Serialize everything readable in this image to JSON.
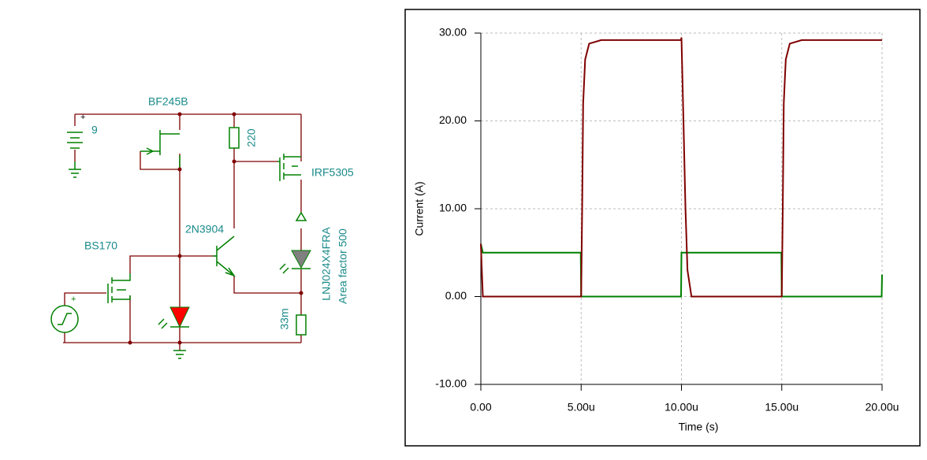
{
  "circuit": {
    "labels": [
      "BF245B",
      "9",
      "220",
      "IRF5305",
      "2N3904",
      "BS170",
      "LNJ024X4FRA",
      "Area factor 500",
      "33m",
      "+",
      "+"
    ]
  },
  "chart_data": {
    "type": "line",
    "x_label": "Time (s)",
    "y_label": "Current (A)",
    "xlim": [
      0,
      2e-05
    ],
    "xticks": [
      {
        "value": 0,
        "label": "0.00"
      },
      {
        "value": 5e-06,
        "label": "5.00u"
      },
      {
        "value": 1e-05,
        "label": "10.00u"
      },
      {
        "value": 1.5e-05,
        "label": "15.00u"
      },
      {
        "value": 2e-05,
        "label": "20.00u"
      }
    ],
    "ylim": [
      -10,
      30
    ],
    "yticks": [
      {
        "value": -10,
        "label": "-10.00"
      },
      {
        "value": 0,
        "label": "0.00"
      },
      {
        "value": 10,
        "label": "10.00"
      },
      {
        "value": 20,
        "label": "20.00"
      },
      {
        "value": 30,
        "label": "30.00"
      }
    ],
    "grid": true,
    "x": [
      0,
      1e-07,
      4.98e-06,
      5e-06,
      5.05e-06,
      5.1e-06,
      5.2e-06,
      5.4e-06,
      6e-06,
      9.98e-06,
      1e-05,
      1.01e-05,
      1.02e-05,
      1.03e-05,
      1.05e-05,
      1.498e-05,
      1.5e-05,
      1.505e-05,
      1.51e-05,
      1.52e-05,
      1.54e-05,
      1.6e-05,
      1.998e-05,
      2e-05
    ],
    "series": [
      {
        "color": "#008000",
        "values": [
          6,
          5,
          5,
          0,
          0,
          0,
          0,
          0,
          0,
          0,
          5,
          5,
          5,
          5,
          5,
          5,
          0,
          0,
          0,
          0,
          0,
          0,
          0,
          2.5
        ]
      },
      {
        "color": "#800000",
        "values": [
          6,
          0,
          0,
          0,
          10,
          22,
          27,
          28.8,
          29.2,
          29.2,
          29.5,
          20,
          10,
          3,
          0,
          0,
          0,
          10,
          22,
          27,
          28.8,
          29.2,
          29.2,
          29.2
        ]
      }
    ]
  }
}
